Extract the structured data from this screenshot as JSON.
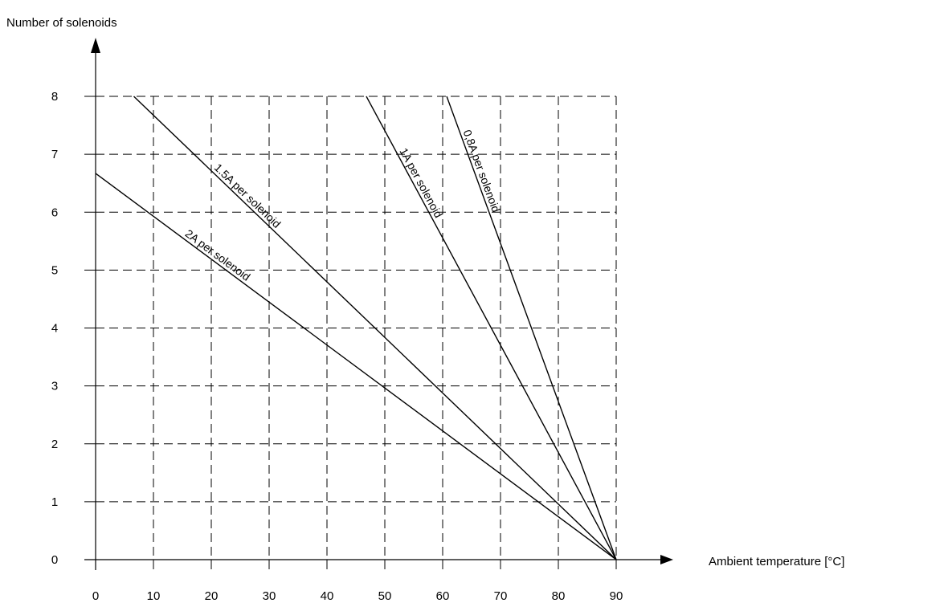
{
  "chart_data": {
    "type": "line",
    "title": "",
    "xlabel": "Ambient temperature [°C]",
    "ylabel": "Number of solenoids",
    "xlim": [
      0,
      90
    ],
    "ylim": [
      0,
      8
    ],
    "x_ticks": [
      0,
      10,
      20,
      30,
      40,
      50,
      60,
      70,
      80,
      90
    ],
    "y_ticks": [
      0,
      1,
      2,
      3,
      4,
      5,
      6,
      7,
      8
    ],
    "grid": true,
    "grid_style": "dashed",
    "legend": "none",
    "series": [
      {
        "name": "2A per solenoid",
        "x": [
          0,
          90
        ],
        "y": [
          6.67,
          0
        ]
      },
      {
        "name": "1.5A per solenoid",
        "x": [
          6.6,
          90
        ],
        "y": [
          8,
          0
        ]
      },
      {
        "name": "1A per solenoid",
        "x": [
          46.8,
          90
        ],
        "y": [
          8,
          0
        ]
      },
      {
        "name": "0,8A per solenoid",
        "x": [
          60.7,
          90
        ],
        "y": [
          8,
          0
        ]
      }
    ],
    "colors": {
      "line": "#000000",
      "grid": "#000000",
      "background": "#ffffff"
    }
  }
}
